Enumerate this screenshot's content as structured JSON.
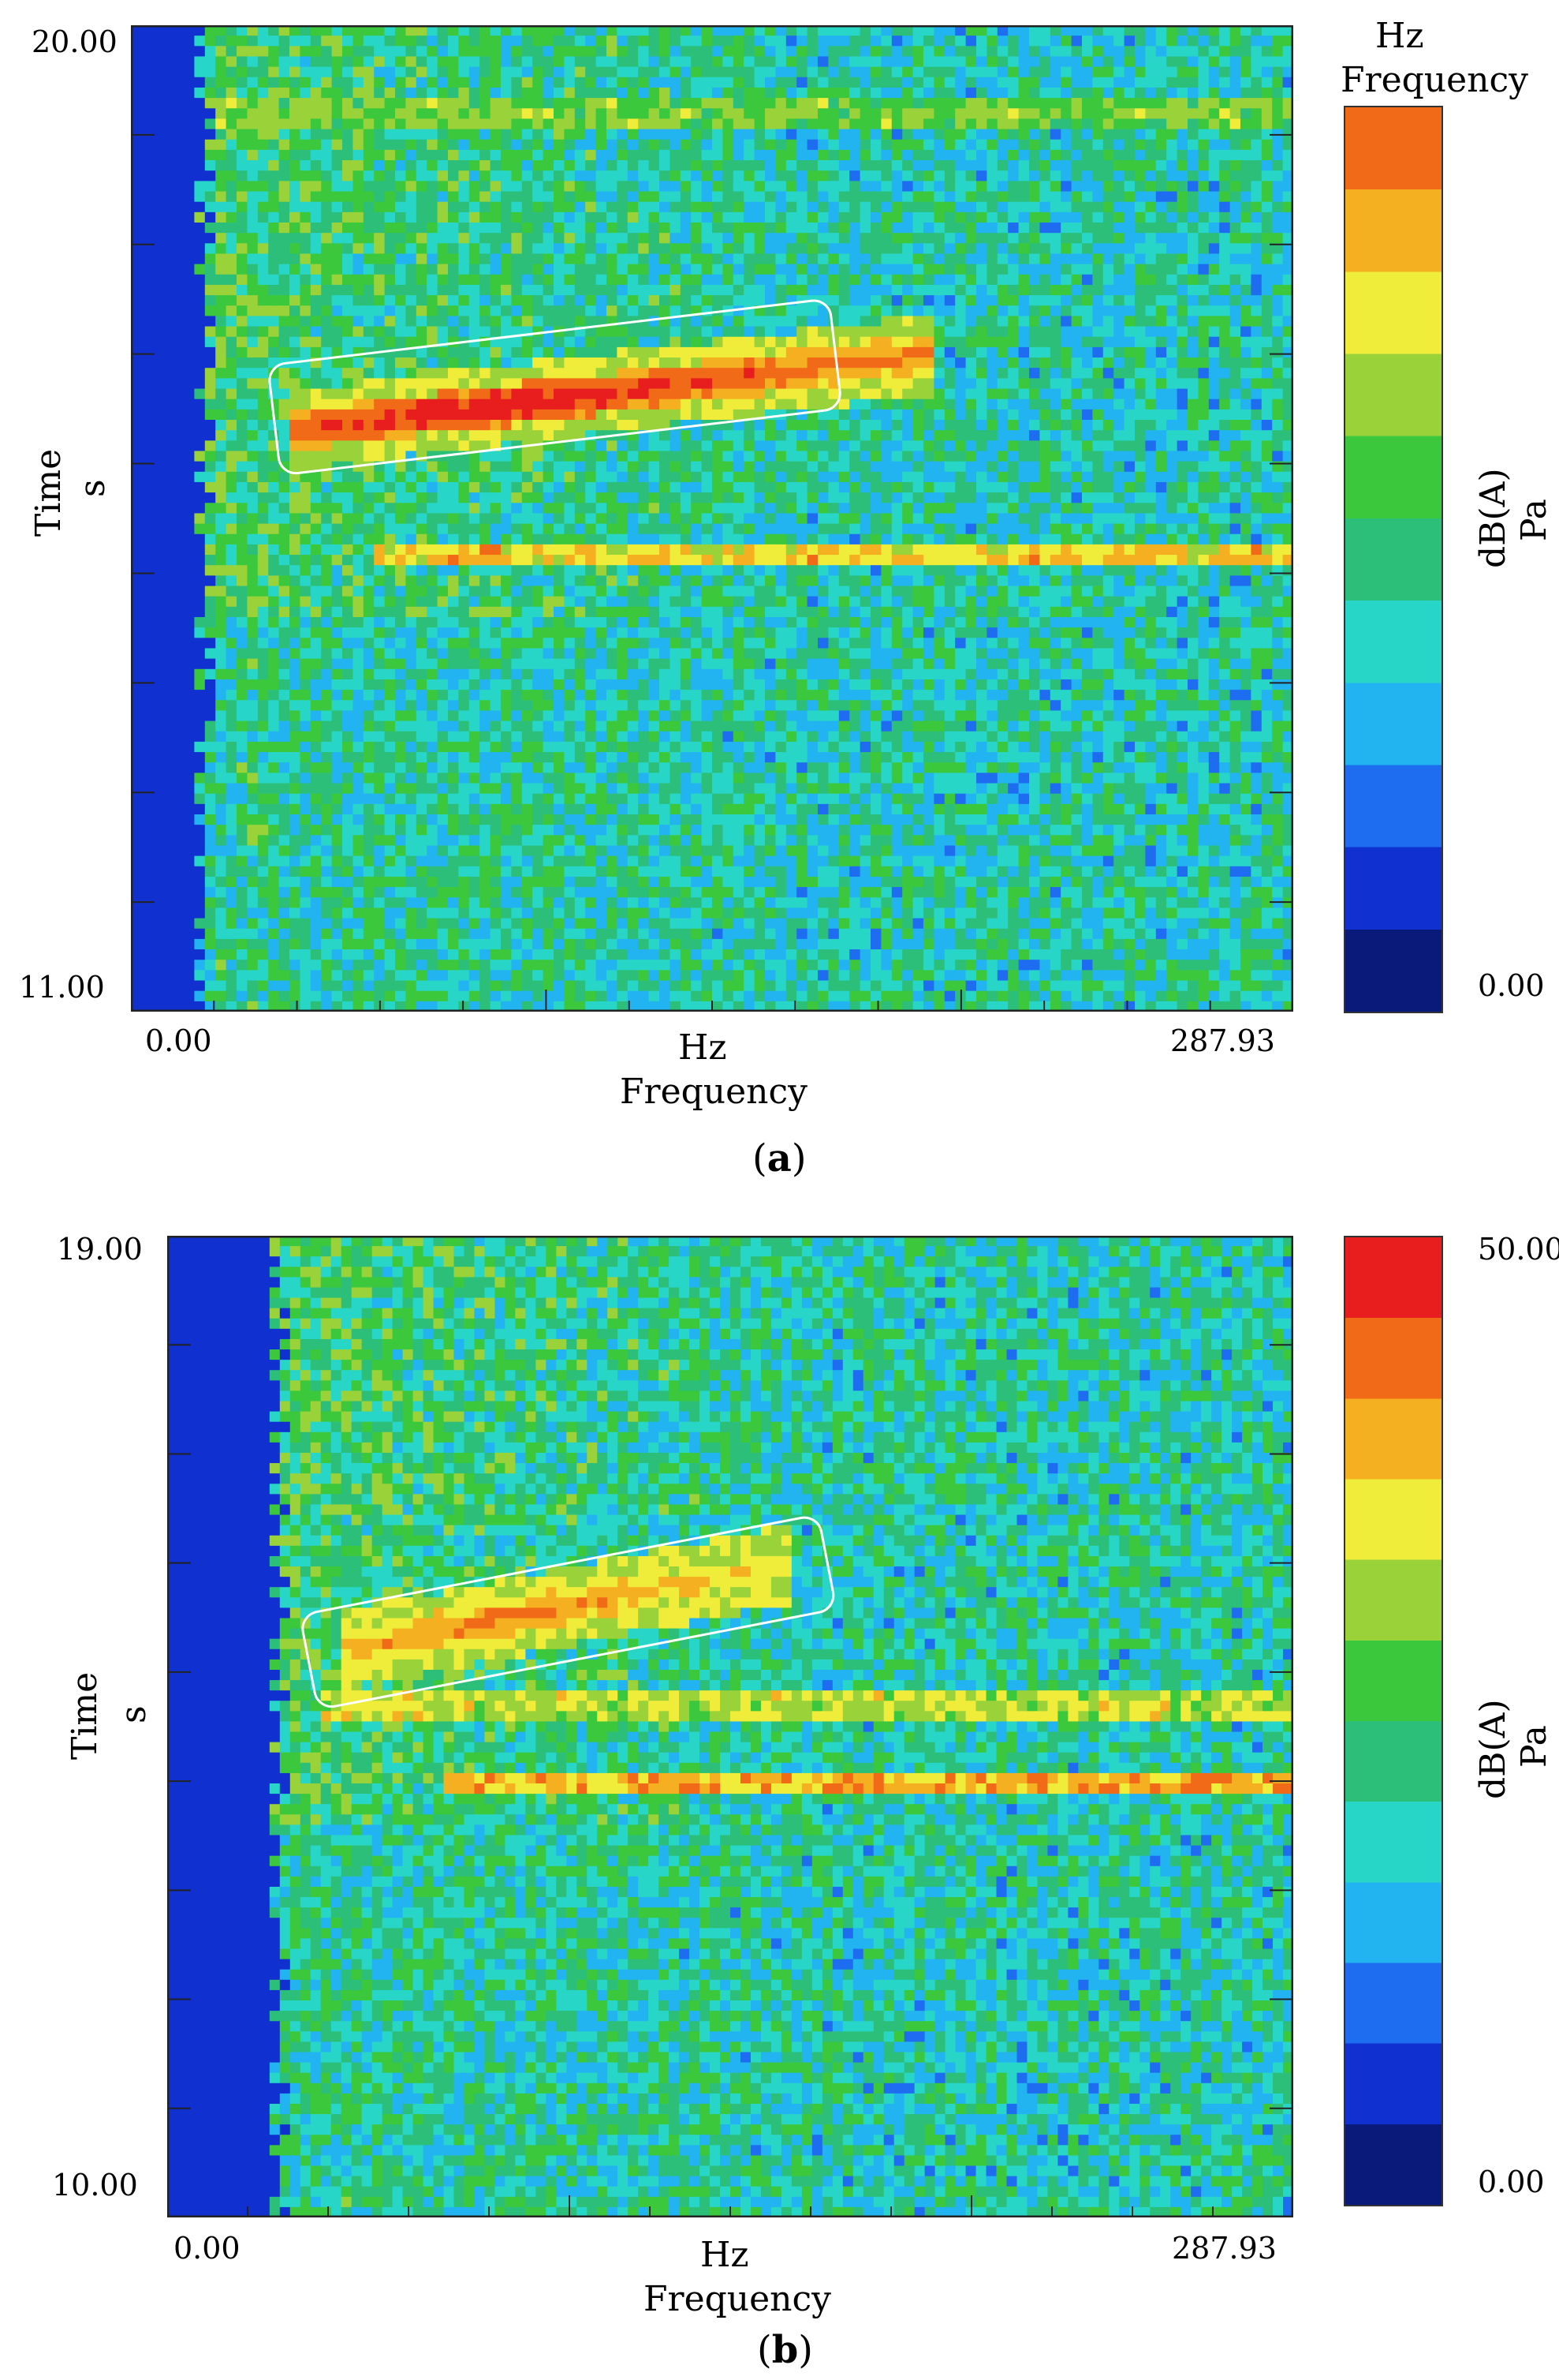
{
  "figure": {
    "panels": [
      {
        "id": "a",
        "caption_letter": "a",
        "y_top_tick": "20.00",
        "y_bottom_tick": "11.00",
        "x_left_tick": "0.00",
        "x_right_tick": "287.93",
        "x_unit": "Hz",
        "x_label": "Frequency",
        "y_label": "Time",
        "y_unit": "s",
        "cbar_top_unit": "Hz",
        "cbar_top_label": "Frequency",
        "cbar_bottom_tick": "0.00",
        "cbar_label": "dB(A)",
        "cbar_unit": "Pa"
      },
      {
        "id": "b",
        "caption_letter": "b",
        "y_top_tick": "19.00",
        "y_bottom_tick": "10.00",
        "x_left_tick": "0.00",
        "x_right_tick": "287.93",
        "x_unit": "Hz",
        "x_label": "Frequency",
        "y_label": "Time",
        "y_unit": "s",
        "cbar_top_tick": "50.00",
        "cbar_bottom_tick": "0.00",
        "cbar_label": "dB(A)",
        "cbar_unit": "Pa"
      }
    ]
  },
  "chart_data": [
    {
      "type": "heatmap",
      "title": "",
      "xlabel": "Frequency",
      "x_unit": "Hz",
      "ylabel": "Time",
      "y_unit": "s",
      "xlim": [
        0.0,
        287.93
      ],
      "ylim": [
        11.0,
        20.0
      ],
      "zlabel": "dB(A)",
      "z_unit": "Pa",
      "zlim": [
        0.0,
        50.0
      ],
      "features": [
        {
          "kind": "low-frequency band",
          "x": [
            0,
            15
          ],
          "level": 5
        },
        {
          "kind": "diagonal ridge (highlighted)",
          "x_start": 40,
          "y_start": 16.3,
          "x_end": 200,
          "y_end": 17.0,
          "level_peak": 48
        },
        {
          "kind": "horizontal line",
          "y": 15.2,
          "x": [
            60,
            287.93
          ],
          "level": 38
        },
        {
          "kind": "horizontal line",
          "y": 19.2,
          "x": [
            20,
            287.93
          ],
          "level": 30
        }
      ],
      "highlight_box": {
        "x": [
          35,
          175
        ],
        "y": [
          15.5,
          17.9
        ]
      },
      "grid": false,
      "colormap": [
        "#0a1a7a",
        "#1030d0",
        "#1e6cf0",
        "#22b4f0",
        "#28d6c8",
        "#2cbf7a",
        "#3cc83c",
        "#9ad23a",
        "#f0ec3a",
        "#f4b020",
        "#f06a18",
        "#e81e1e"
      ]
    },
    {
      "type": "heatmap",
      "title": "",
      "xlabel": "Frequency",
      "x_unit": "Hz",
      "ylabel": "Time",
      "y_unit": "s",
      "xlim": [
        0.0,
        287.93
      ],
      "ylim": [
        10.0,
        19.0
      ],
      "zlabel": "dB(A)",
      "z_unit": "Pa",
      "zlim": [
        0.0,
        50.0
      ],
      "features": [
        {
          "kind": "low-frequency band",
          "x": [
            0,
            25
          ],
          "level": 5
        },
        {
          "kind": "diagonal ridge (highlighted)",
          "x_start": 45,
          "y_start": 15.2,
          "x_end": 160,
          "y_end": 16.0,
          "level_peak": 42
        },
        {
          "kind": "horizontal line",
          "y": 14.7,
          "x": [
            40,
            287.93
          ],
          "level": 34
        },
        {
          "kind": "horizontal line",
          "y": 14.0,
          "x": [
            70,
            287.93
          ],
          "level": 40
        }
      ],
      "highlight_box": {
        "x": [
          35,
          170
        ],
        "y": [
          14.5,
          16.6
        ]
      },
      "grid": false,
      "colormap": [
        "#0a1a7a",
        "#1030d0",
        "#1e6cf0",
        "#22b4f0",
        "#28d6c8",
        "#2cbf7a",
        "#3cc83c",
        "#9ad23a",
        "#f0ec3a",
        "#f4b020",
        "#f06a18",
        "#e81e1e"
      ]
    }
  ]
}
